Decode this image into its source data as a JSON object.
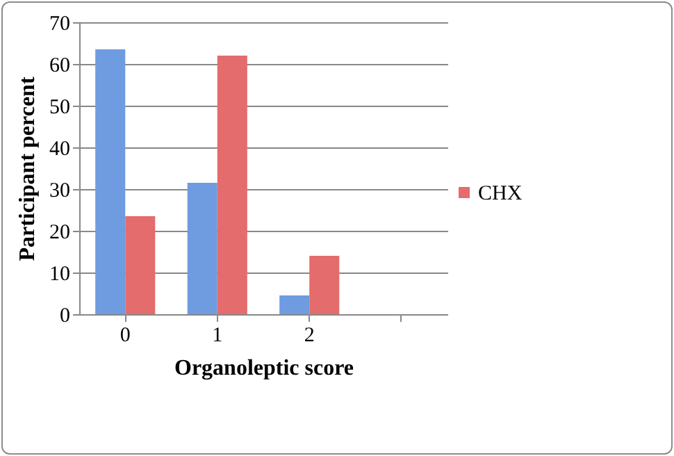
{
  "chart_data": {
    "type": "bar",
    "xlabel": "Organoleptic score",
    "ylabel": "Participant percent",
    "categories": [
      "0",
      "1",
      "2",
      null
    ],
    "series": [
      {
        "color": "#6f9be0",
        "values": [
          63.5,
          31.5,
          4.5,
          null
        ]
      },
      {
        "name": "CHX",
        "color": "#e46c6c",
        "values": [
          23.5,
          62,
          14,
          null
        ]
      }
    ],
    "ylim": [
      0,
      70
    ],
    "yticks": [
      0,
      10,
      20,
      30,
      40,
      50,
      60,
      70
    ],
    "grid": "y",
    "legend": "right"
  }
}
